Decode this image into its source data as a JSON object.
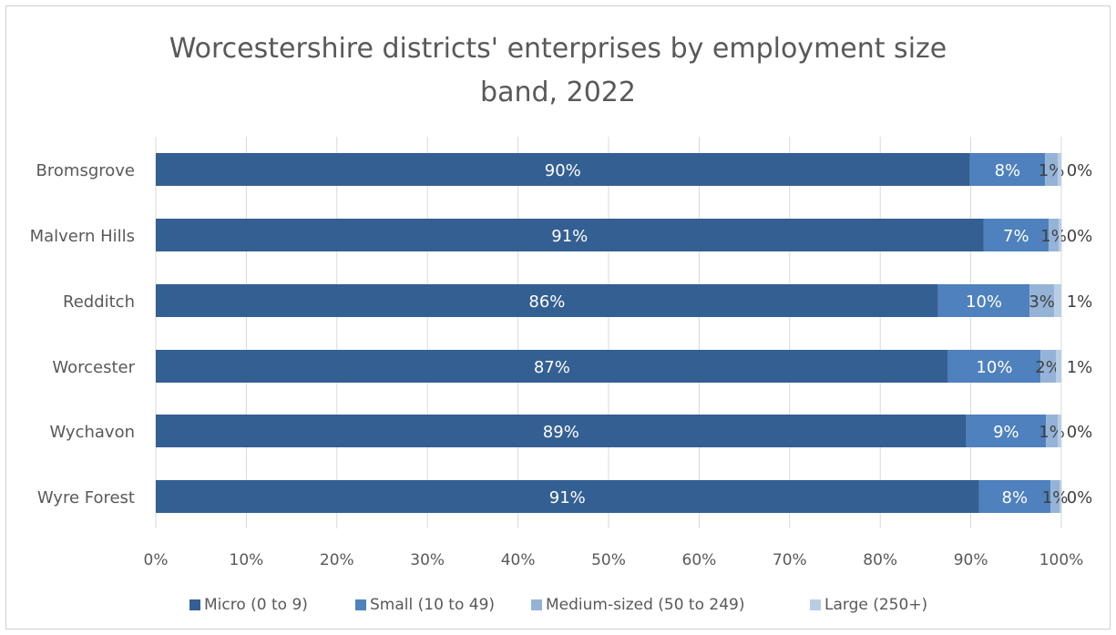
{
  "chart_data": {
    "type": "bar",
    "orientation": "horizontal",
    "stacked": "percent",
    "title": "Worcestershire districts' enterprises by employment size band, 2022",
    "title_lines": [
      "Worcestershire districts' enterprises by employment size",
      "band, 2022"
    ],
    "categories": [
      "Bromsgrove",
      "Malvern Hills",
      "Redditch",
      "Worcester",
      "Wychavon",
      "Wyre Forest"
    ],
    "series": [
      {
        "name": "Micro (0 to 9)",
        "color": "#345f92",
        "values": [
          89.9,
          91.4,
          86.4,
          87.5,
          89.5,
          90.9
        ],
        "labels": [
          "90%",
          "91%",
          "86%",
          "87%",
          "89%",
          "91%"
        ]
      },
      {
        "name": "Small (10 to 49)",
        "color": "#4e81bd",
        "values": [
          8.3,
          7.2,
          10.1,
          10.2,
          8.8,
          7.9
        ],
        "labels": [
          "8%",
          "7%",
          "10%",
          "10%",
          "9%",
          "8%"
        ]
      },
      {
        "name": "Medium-sized (50 to 249)",
        "color": "#95b3d7",
        "values": [
          1.4,
          1.1,
          2.7,
          1.7,
          1.3,
          1.0
        ],
        "labels": [
          "1%",
          "1%",
          "3%",
          "2%",
          "1%",
          "1%"
        ]
      },
      {
        "name": "Large (250+)",
        "color": "#b9cde5",
        "values": [
          0.4,
          0.3,
          0.8,
          0.6,
          0.4,
          0.2
        ],
        "labels": [
          "0%",
          "0%",
          "1%",
          "1%",
          "0%",
          "0%"
        ]
      }
    ],
    "x_ticks": [
      "0%",
      "10%",
      "20%",
      "30%",
      "40%",
      "50%",
      "60%",
      "70%",
      "80%",
      "90%",
      "100%"
    ],
    "xlim": [
      0,
      100
    ],
    "grid": "vertical",
    "legend_position": "bottom",
    "label_text_color": "#ffffff",
    "outside_label_color": "#404040",
    "axis_label_color": "#595959",
    "gridline_color": "#d9d9d9"
  }
}
